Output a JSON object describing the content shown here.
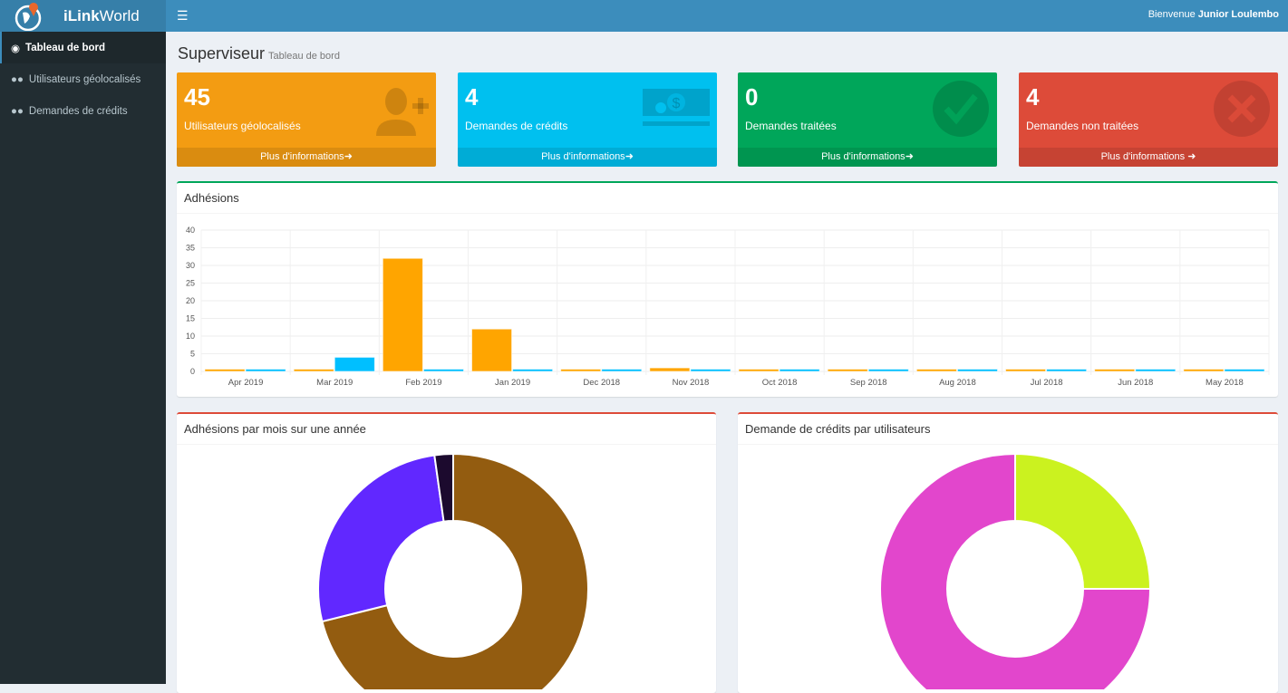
{
  "app": {
    "brand_bold": "iLink",
    "brand_rest": " World"
  },
  "header": {
    "welcome": "Bienvenue",
    "user": "Junior Loulembo"
  },
  "sidebar": {
    "items": [
      {
        "label": "Tableau de bord",
        "icon": "dashboard-icon"
      },
      {
        "label": "Utilisateurs géolocalisés",
        "icon": "users-icon"
      },
      {
        "label": "Demandes de crédits",
        "icon": "users-icon"
      }
    ]
  },
  "page": {
    "title": "Superviseur",
    "subtitle": "Tableau de bord"
  },
  "stats": [
    {
      "value": "4​5",
      "label": "Utilisateurs géolocalisés",
      "link": "Plus d'informations",
      "color": "#f39c12",
      "icon": "user-plus-icon"
    },
    {
      "value": "4",
      "label": "Demandes de crédits",
      "link": "Plus d'informations",
      "color": "#00c0ef",
      "icon": "money-icon"
    },
    {
      "value": "0",
      "label": "Demandes traitées",
      "link": "Plus d'informations",
      "color": "#00a65a",
      "icon": "check-circle-icon"
    },
    {
      "value": "4",
      "label": "Demandes non traitées",
      "link": "Plus d'informations",
      "color": "#dd4b39",
      "icon": "times-circle-icon"
    }
  ],
  "adhesions": {
    "title": "Adhésions"
  },
  "donut1": {
    "title": "Adhésions par mois sur une année"
  },
  "donut2": {
    "title": "Demande de crédits par utilisateurs"
  },
  "chart_data": [
    {
      "type": "bar",
      "categories": [
        "Apr 2019",
        "Mar 2019",
        "Feb 2019",
        "Jan 2019",
        "Dec 2018",
        "Nov 2018",
        "Oct 2018",
        "Sep 2018",
        "Aug 2018",
        "Jul 2018",
        "Jun 2018",
        "May 2018"
      ],
      "series": [
        {
          "color": "#ffa500",
          "values": [
            0,
            0,
            32,
            12,
            0,
            1,
            0,
            0,
            0,
            0,
            0,
            0
          ]
        },
        {
          "color": "#00bfff",
          "values": [
            0,
            4,
            0,
            0,
            0,
            0,
            0,
            0,
            0,
            0,
            0,
            0
          ]
        }
      ],
      "ylim": [
        0,
        40
      ],
      "yticks": [
        0,
        5,
        10,
        15,
        20,
        25,
        30,
        35,
        40
      ],
      "grid": true
    },
    {
      "type": "pie",
      "donut": true,
      "values": [
        32,
        12,
        1
      ],
      "colors": [
        "#935c10",
        "#6128ff",
        "#1c0a2e"
      ]
    },
    {
      "type": "pie",
      "donut": true,
      "values": [
        1,
        3
      ],
      "colors": [
        "#cbf21f",
        "#e246cc"
      ]
    }
  ]
}
